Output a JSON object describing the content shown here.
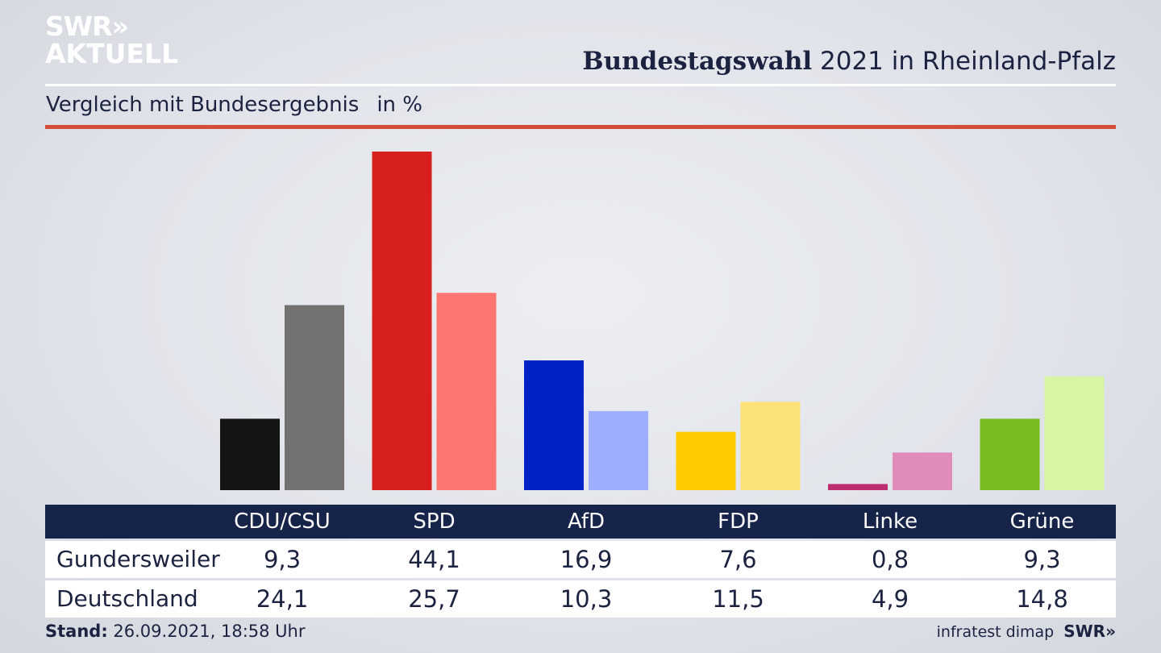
{
  "logo": {
    "line1": "SWR»",
    "line2": "AKTUELL"
  },
  "header": {
    "title_bold": "Bundestagswahl",
    "title_rest": " 2021 in Rheinland-Pfalz"
  },
  "subtitle": {
    "text": "Vergleich mit Bundesergebnis",
    "unit": "in %"
  },
  "chart_data": {
    "type": "bar",
    "title": "Bundestagswahl 2021 in Rheinland-Pfalz",
    "subtitle": "Vergleich mit Bundesergebnis in %",
    "categories": [
      "CDU/CSU",
      "SPD",
      "AfD",
      "FDP",
      "Linke",
      "Grüne"
    ],
    "series": [
      {
        "name": "Gundersweiler",
        "values": [
          9.3,
          44.1,
          16.9,
          7.6,
          0.8,
          9.3
        ],
        "colors": [
          "#141414",
          "#d71f1f",
          "#0022c6",
          "#ffcc00",
          "#be2d6e",
          "#76bc21"
        ]
      },
      {
        "name": "Deutschland",
        "values": [
          24.1,
          25.7,
          10.3,
          11.5,
          4.9,
          14.8
        ],
        "colors": [
          "#737271",
          "#ff7571",
          "#9fadfe",
          "#fde278",
          "#e08bb8",
          "#d6f6a4"
        ]
      }
    ],
    "value_labels": [
      [
        "9,3",
        "44,1",
        "16,9",
        "7,6",
        "0,8",
        "9,3"
      ],
      [
        "24,1",
        "25,7",
        "10,3",
        "11,5",
        "4,9",
        "14,8"
      ]
    ],
    "ylim": [
      0,
      44.1
    ]
  },
  "footer": {
    "stand_label": "Stand:",
    "stand_value": " 26.09.2021, 18:58 Uhr",
    "source": "infratest dimap",
    "brand": "SWR»"
  }
}
